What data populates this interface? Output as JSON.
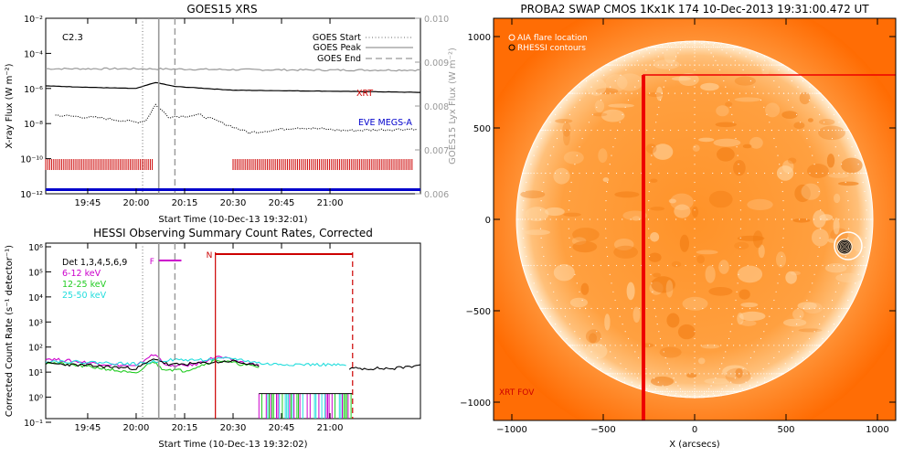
{
  "chart_data": [
    {
      "type": "line",
      "title": "GOES15 XRS",
      "xlabel": "Start Time (10-Dec-13 19:32:01)",
      "ylabel": "X-ray Flux (W m⁻²)",
      "ylabel_right": "GOES15 Lyx Flux (W m⁻²)",
      "xlim": [
        "19:32",
        "21:28"
      ],
      "ylim": [
        1e-12,
        0.01
      ],
      "ylim_right": [
        0.006,
        0.01
      ],
      "y_scale": "log",
      "x_ticks": [
        "19:45",
        "20:00",
        "20:15",
        "20:30",
        "20:45",
        "21:00"
      ],
      "y_ticks": [
        "10⁻²",
        "10⁻⁴",
        "10⁻⁶",
        "10⁻⁸",
        "10⁻¹⁰",
        "10⁻¹²"
      ],
      "y_ticks_right": [
        "0.010",
        "0.009",
        "0.008",
        "0.007",
        "0.006"
      ],
      "annotation": "C2.3",
      "legend": {
        "placement": "top-right",
        "entries": [
          {
            "label": "GOES Start",
            "style": "dotted"
          },
          {
            "label": "GOES Peak",
            "style": "solid"
          },
          {
            "label": "GOES End",
            "style": "dashed"
          }
        ]
      },
      "labels": {
        "xrt": "XRT",
        "eve": "EVE MEGS-A"
      },
      "event_times": {
        "start": "20:02",
        "peak": "20:07",
        "end": "20:12"
      },
      "series": [
        {
          "role": "lyman-alpha",
          "color": "#999999",
          "x": [
            "19:32",
            "20:00",
            "20:30",
            "21:00",
            "21:28"
          ],
          "y": [
            0.00885,
            0.00885,
            0.00883,
            0.00882,
            0.00882
          ]
        },
        {
          "role": "long channel",
          "color": "#000000",
          "x": [
            "19:32",
            "19:50",
            "20:00",
            "20:06",
            "20:12",
            "20:30",
            "21:00",
            "21:28"
          ],
          "y": [
            1.4e-06,
            1.1e-06,
            1e-06,
            2.2e-06,
            1.3e-06,
            8e-07,
            7e-07,
            6e-07
          ]
        },
        {
          "role": "short channel",
          "color": "#000000",
          "style": "dotted",
          "x": [
            "19:35",
            "19:50",
            "20:00",
            "20:03",
            "20:06",
            "20:10",
            "20:20",
            "20:35",
            "20:50",
            "21:05",
            "21:27"
          ],
          "y": [
            3e-08,
            2e-08,
            1.2e-08,
            1.5e-08,
            1.2e-07,
            2.5e-08,
            3e-08,
            3e-09,
            6e-09,
            4e-09,
            5e-09
          ]
        }
      ],
      "xrt_coverage": [
        [
          "19:32",
          "20:05"
        ],
        [
          "20:30",
          "21:26"
        ]
      ],
      "eve_coverage": [
        [
          "19:32",
          "21:28"
        ]
      ],
      "colors": {
        "xrt": "#cc0000",
        "eve": "#0000cc",
        "event_lines": "#999999"
      }
    },
    {
      "type": "line",
      "title": "HESSI Observing Summary Count Rates, Corrected",
      "xlabel": "Start Time (10-Dec-13 19:32:02)",
      "ylabel": "Corrected Count Rate (s⁻¹ detector⁻¹)",
      "xlim": [
        "19:32",
        "21:28"
      ],
      "ylim": [
        0.1,
        1000000.0
      ],
      "y_scale": "log",
      "x_ticks": [
        "19:45",
        "20:00",
        "20:15",
        "20:30",
        "20:45",
        "21:00"
      ],
      "y_ticks": [
        "10⁶",
        "10⁵",
        "10⁴",
        "10³",
        "10²",
        "10¹",
        "10⁰",
        "10⁻¹"
      ],
      "legend": {
        "placement": "top-left",
        "entries": [
          {
            "label": "Det 1,3,4,5,6,9",
            "color": "#000000"
          },
          {
            "label": "6-12 keV",
            "color": "#cc00cc"
          },
          {
            "label": "12-25 keV",
            "color": "#22cc22"
          },
          {
            "label": "25-50 keV",
            "color": "#22dddd"
          }
        ]
      },
      "flags": {
        "flare": "F",
        "night": "N"
      },
      "flare_interval": [
        "20:07",
        "20:14"
      ],
      "night_interval": [
        "20:35",
        "21:07"
      ],
      "event_times": {
        "start": "20:02",
        "peak": "20:07",
        "end": "20:12"
      },
      "series": [
        {
          "name": "6-12 keV",
          "color": "#cc00cc",
          "x": [
            "19:32",
            "19:50",
            "20:00",
            "20:04",
            "20:06",
            "20:10",
            "20:18",
            "20:25",
            "20:35",
            "20:38"
          ],
          "y": [
            25,
            15,
            12,
            30,
            35,
            12,
            14,
            30,
            15,
            14
          ]
        },
        {
          "name": "12-25 keV",
          "color": "#22cc22",
          "x": [
            "19:32",
            "19:50",
            "20:00",
            "20:05",
            "20:08",
            "20:15",
            "20:25",
            "20:38"
          ],
          "y": [
            18,
            10,
            6,
            20,
            10,
            8,
            22,
            11
          ]
        },
        {
          "name": "25-50 keV",
          "color": "#22dddd",
          "x": [
            "19:32",
            "19:50",
            "20:00",
            "20:10",
            "20:20",
            "20:30",
            "20:40",
            "21:00",
            "21:05"
          ],
          "y": [
            20,
            17,
            15,
            22,
            22,
            25,
            15,
            14,
            13
          ]
        },
        {
          "name": "Det 1,3,4,5,6,9",
          "color": "#000000",
          "x": [
            "19:32",
            "19:50",
            "20:00",
            "20:06",
            "20:10",
            "20:20",
            "20:30",
            "20:38"
          ],
          "y": [
            16,
            12,
            10,
            25,
            14,
            16,
            20,
            12
          ]
        },
        {
          "role": "post-night rates",
          "color": "#000000",
          "x": [
            "21:06",
            "21:12",
            "21:20",
            "21:28"
          ],
          "y": [
            10,
            10,
            10,
            14
          ]
        }
      ],
      "night_fill": {
        "level": 1.0,
        "colors": [
          "#22cc22",
          "#cc00cc",
          "#22dddd"
        ]
      },
      "colors": {
        "flags": "#cc0000",
        "flare_bar": "#cc00cc",
        "event_lines": "#999999"
      }
    },
    {
      "type": "image",
      "title": "PROBA2 SWAP CMOS 1Kx1K 174 10-Dec-2013 19:31:00.472 UT",
      "xlabel": "X (arcsecs)",
      "xlim": [
        -1100,
        1100
      ],
      "ylim": [
        -1100,
        1100
      ],
      "x_ticks": [
        -1000,
        -500,
        0,
        500,
        1000
      ],
      "y_ticks": [
        1000,
        500,
        0,
        -500,
        -1000
      ],
      "legend": {
        "placement": "top-left",
        "entries": [
          {
            "label": "AIA flare location",
            "marker": "circle"
          },
          {
            "label": "RHESSI contours",
            "marker": "circle"
          }
        ]
      },
      "solar_radius": 975,
      "aia_flare_location": {
        "x": 820,
        "y": -150
      },
      "xrt_fov": {
        "label": "XRT FOV",
        "x_min": -280,
        "y_max": 790
      },
      "colors": {
        "disk": "#ff9a30",
        "corona": "#ff6a00",
        "fov": "#ff0000",
        "limb": "#ffffff"
      }
    }
  ]
}
